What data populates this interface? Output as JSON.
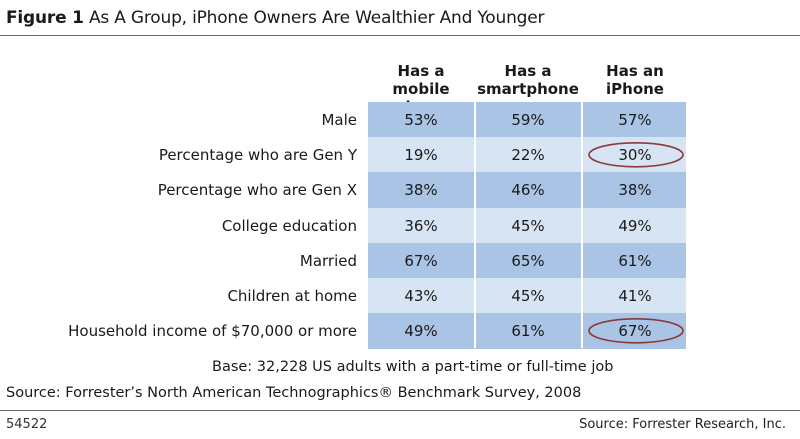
{
  "header": {
    "figure_label": "Figure 1",
    "title": "As A Group, iPhone Owners Are Wealthier And Younger"
  },
  "chart_data": {
    "type": "table",
    "columns": [
      "Has a mobile phone",
      "Has a smartphone",
      "Has an iPhone"
    ],
    "rows": [
      {
        "label": "Male",
        "values": [
          "53%",
          "59%",
          "57%"
        ]
      },
      {
        "label": "Percentage who are Gen Y",
        "values": [
          "19%",
          "22%",
          "30%"
        ]
      },
      {
        "label": "Percentage who are Gen X",
        "values": [
          "38%",
          "46%",
          "38%"
        ]
      },
      {
        "label": "College education",
        "values": [
          "36%",
          "45%",
          "49%"
        ]
      },
      {
        "label": "Married",
        "values": [
          "67%",
          "65%",
          "61%"
        ]
      },
      {
        "label": "Children at home",
        "values": [
          "43%",
          "45%",
          "41%"
        ]
      },
      {
        "label": "Household income of $70,000 or more",
        "values": [
          "49%",
          "61%",
          "67%"
        ]
      }
    ],
    "highlighted_cells": [
      {
        "row": 1,
        "column": 2
      },
      {
        "row": 6,
        "column": 2
      }
    ]
  },
  "notes": {
    "base": "Base: 32,228 US adults with a part-time or full-time job",
    "source": "Source: Forrester’s North American Technographics® Benchmark Survey, 2008"
  },
  "footer": {
    "figure_number": "54522",
    "credit": "Source: Forrester Research, Inc."
  },
  "colors": {
    "band_dark": "#a9c4e4",
    "band_light": "#d6e4f3",
    "highlight_ring": "#8b3a3a"
  }
}
